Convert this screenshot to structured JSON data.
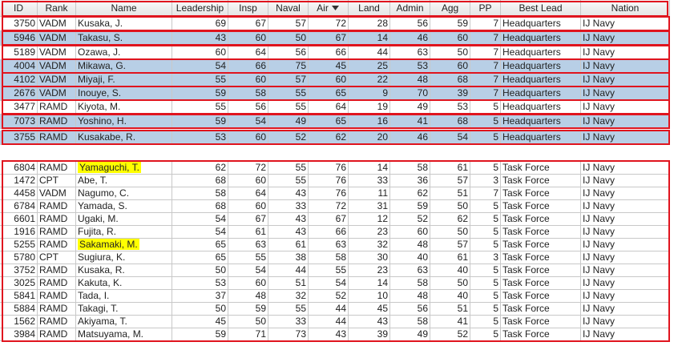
{
  "table": {
    "headers": [
      "ID",
      "Rank",
      "Name",
      "Leadership",
      "Insp",
      "Naval",
      "Air",
      "Land",
      "Admin",
      "Agg",
      "PP",
      "Best Lead",
      "Nation"
    ],
    "groups": [
      {
        "rows": [
          [
            3750,
            "VADM",
            "Kusaka, J.",
            69,
            67,
            57,
            72,
            28,
            56,
            59,
            7,
            "Headquarters",
            "IJ Navy"
          ],
          [
            5946,
            "VADM",
            "Takasu, S.",
            43,
            60,
            50,
            67,
            14,
            46,
            60,
            7,
            "Headquarters",
            "IJ Navy"
          ],
          [
            5189,
            "VADM",
            "Ozawa, J.",
            60,
            64,
            56,
            66,
            44,
            63,
            50,
            7,
            "Headquarters",
            "IJ Navy"
          ],
          [
            4004,
            "VADM",
            "Mikawa, G.",
            54,
            66,
            75,
            45,
            25,
            53,
            60,
            7,
            "Headquarters",
            "IJ Navy"
          ],
          [
            4102,
            "VADM",
            "Miyaji, F.",
            55,
            60,
            57,
            60,
            22,
            48,
            68,
            7,
            "Headquarters",
            "IJ Navy"
          ],
          [
            2676,
            "VADM",
            "Inouye, S.",
            59,
            58,
            55,
            65,
            9,
            70,
            39,
            7,
            "Headquarters",
            "IJ Navy"
          ],
          [
            3477,
            "RAMD",
            "Kiyota, M.",
            55,
            56,
            55,
            64,
            19,
            49,
            53,
            5,
            "Headquarters",
            "IJ Navy"
          ],
          [
            7073,
            "RAMD",
            "Yoshino, H.",
            59,
            54,
            49,
            65,
            16,
            41,
            68,
            5,
            "Headquarters",
            "IJ Navy"
          ],
          [
            3755,
            "RAMD",
            "Kusakabe, R.",
            53,
            60,
            52,
            62,
            20,
            46,
            54,
            5,
            "Headquarters",
            "IJ Navy"
          ]
        ]
      },
      {
        "rows": [
          [
            6804,
            "RAMD",
            "Yamaguchi, T.",
            62,
            72,
            55,
            76,
            14,
            58,
            61,
            5,
            "Task Force",
            "IJ Navy"
          ],
          [
            1472,
            "CPT",
            "Abe, T.",
            68,
            60,
            55,
            76,
            33,
            36,
            57,
            3,
            "Task Force",
            "IJ Navy"
          ],
          [
            4458,
            "VADM",
            "Nagumo, C.",
            58,
            64,
            43,
            76,
            11,
            62,
            51,
            7,
            "Task Force",
            "IJ Navy"
          ],
          [
            6784,
            "RAMD",
            "Yamada, S.",
            68,
            60,
            33,
            72,
            31,
            59,
            50,
            5,
            "Task Force",
            "IJ Navy"
          ],
          [
            6601,
            "RAMD",
            "Ugaki, M.",
            54,
            67,
            43,
            67,
            12,
            52,
            62,
            5,
            "Task Force",
            "IJ Navy"
          ],
          [
            1916,
            "RAMD",
            "Fujita, R.",
            54,
            61,
            43,
            66,
            23,
            60,
            50,
            5,
            "Task Force",
            "IJ Navy"
          ],
          [
            5255,
            "RAMD",
            "Sakamaki, M.",
            65,
            63,
            61,
            63,
            32,
            48,
            57,
            5,
            "Task Force",
            "IJ Navy"
          ],
          [
            5780,
            "CPT",
            "Sugiura, K.",
            65,
            55,
            38,
            58,
            30,
            40,
            61,
            3,
            "Task Force",
            "IJ Navy"
          ],
          [
            3752,
            "RAMD",
            "Kusaka, R.",
            50,
            54,
            44,
            55,
            23,
            63,
            40,
            5,
            "Task Force",
            "IJ Navy"
          ],
          [
            3025,
            "RAMD",
            "Kakuta, K.",
            53,
            60,
            51,
            54,
            14,
            58,
            50,
            5,
            "Task Force",
            "IJ Navy"
          ],
          [
            5841,
            "RAMD",
            "Tada, I.",
            37,
            48,
            32,
            52,
            10,
            48,
            40,
            5,
            "Task Force",
            "IJ Navy"
          ],
          [
            5884,
            "RAMD",
            "Takagi, T.",
            50,
            59,
            55,
            44,
            45,
            56,
            51,
            5,
            "Task Force",
            "IJ Navy"
          ],
          [
            1562,
            "RAMD",
            "Akiyama, T.",
            45,
            50,
            33,
            44,
            43,
            58,
            41,
            5,
            "Task Force",
            "IJ Navy"
          ],
          [
            3984,
            "RAMD",
            "Matsuyama, M.",
            59,
            71,
            73,
            43,
            39,
            49,
            52,
            5,
            "Task Force",
            "IJ Navy"
          ]
        ]
      }
    ]
  }
}
